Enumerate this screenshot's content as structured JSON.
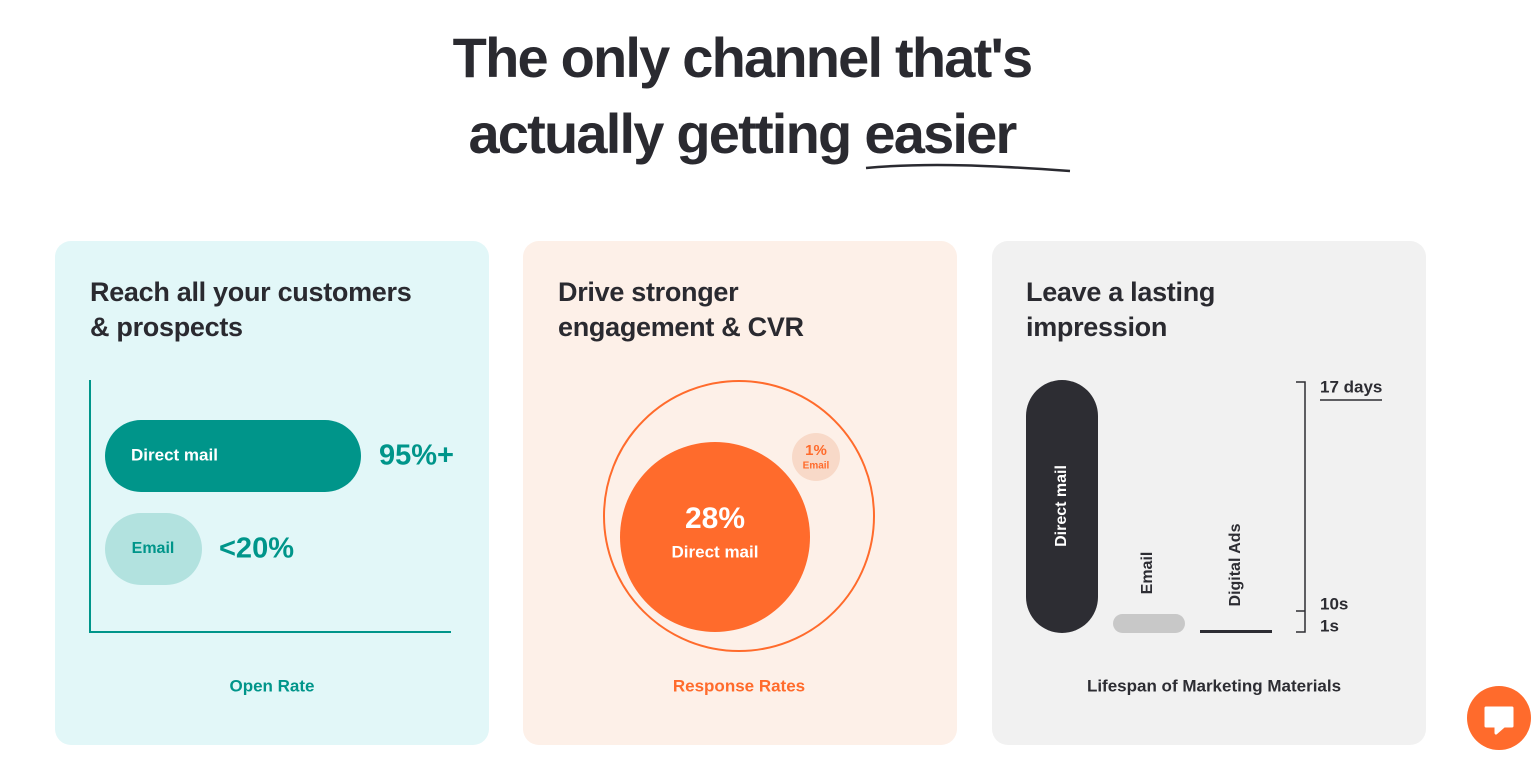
{
  "header": {
    "title_line1": "The only channel that's",
    "title_line2": "actually getting",
    "title_emphasis": "easier"
  },
  "cards": [
    {
      "title_line1": "Reach all your customers",
      "title_line2": "& prospects",
      "bars": [
        {
          "label": "Direct mail",
          "value": "95%+"
        },
        {
          "label": "Email",
          "value": "<20%"
        }
      ],
      "caption": "Open Rate"
    },
    {
      "title_line1": "Drive stronger",
      "title_line2": "engagement & CVR",
      "main": {
        "value": "28%",
        "label": "Direct mail"
      },
      "minor": {
        "value": "1%",
        "label": "Email"
      },
      "caption": "Response Rates"
    },
    {
      "title_line1": "Leave a lasting",
      "title_line2": "impression",
      "bars": [
        "Direct mail",
        "Email",
        "Digital Ads"
      ],
      "scale": [
        "17 days",
        "10s",
        "1s"
      ],
      "caption": "Lifespan of Marketing Materials"
    }
  ]
}
